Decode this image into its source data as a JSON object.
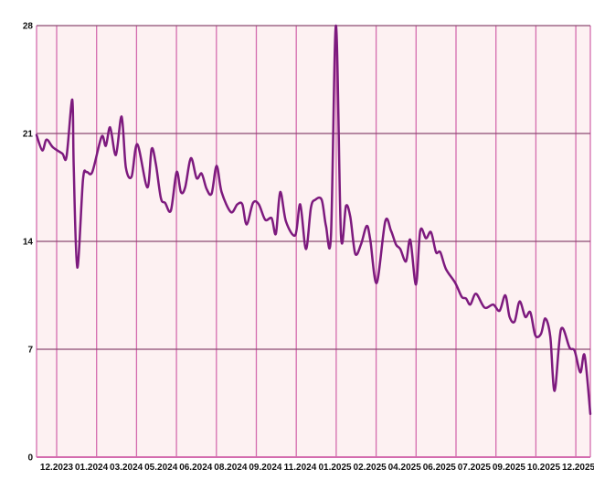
{
  "chart_data": {
    "type": "line",
    "title": "",
    "xlabel": "",
    "ylabel": "",
    "ylim": [
      0,
      28
    ],
    "yticks": [
      "0",
      "7",
      "14",
      "21",
      "28"
    ],
    "xlim": [
      "2023-11-03",
      "2025-12-17"
    ],
    "xtick_labels": [
      "12.2023",
      "01.2024",
      "03.2024",
      "05.2024",
      "06.2024",
      "08.2024",
      "09.2024",
      "11.2024",
      "01.2025",
      "02.2025",
      "04.2025",
      "06.2025",
      "07.2025",
      "09.2025",
      "10.2025",
      "12.2025"
    ],
    "grid": true,
    "colors": {
      "line": "#7d1a7e",
      "plot_bg": "#fdf1f2",
      "vgrid": "#d46cae",
      "hgrid": "#8c4a72",
      "axis": "#d46cae"
    },
    "series": [
      {
        "x": [
          "2023-11-03",
          "2023-11-11",
          "2023-11-17",
          "2023-11-26",
          "2023-12-09",
          "2023-12-15",
          "2023-12-23",
          "2023-12-25",
          "2023-12-30",
          "2024-01-07",
          "2024-01-12",
          "2024-01-20",
          "2024-02-02",
          "2024-02-08",
          "2024-02-14",
          "2024-02-22",
          "2024-03-01",
          "2024-03-07",
          "2024-03-15",
          "2024-03-23",
          "2024-04-06",
          "2024-04-12",
          "2024-04-18",
          "2024-04-25",
          "2024-05-01",
          "2024-05-09",
          "2024-05-17",
          "2024-05-23",
          "2024-05-29",
          "2024-06-06",
          "2024-06-14",
          "2024-06-21",
          "2024-06-28",
          "2024-07-05",
          "2024-07-12",
          "2024-07-19",
          "2024-08-01",
          "2024-08-10",
          "2024-08-17",
          "2024-08-23",
          "2024-09-01",
          "2024-09-09",
          "2024-09-18",
          "2024-09-27",
          "2024-10-03",
          "2024-10-09",
          "2024-10-17",
          "2024-10-30",
          "2024-11-06",
          "2024-11-14",
          "2024-11-21",
          "2024-11-27",
          "2024-12-06",
          "2024-12-12",
          "2024-12-19",
          "2024-12-26",
          "2025-01-02",
          "2025-01-09",
          "2025-01-15",
          "2025-01-22",
          "2025-01-30",
          "2025-02-07",
          "2025-02-12",
          "2025-02-21",
          "2025-03-05",
          "2025-03-13",
          "2025-03-20",
          "2025-03-26",
          "2025-04-03",
          "2025-04-09",
          "2025-04-17",
          "2025-04-23",
          "2025-05-01",
          "2025-05-08",
          "2025-05-15",
          "2025-05-21",
          "2025-05-29",
          "2025-06-11",
          "2025-06-20",
          "2025-06-26",
          "2025-07-02",
          "2025-07-10",
          "2025-07-22",
          "2025-08-03",
          "2025-08-12",
          "2025-08-20",
          "2025-08-26",
          "2025-09-02",
          "2025-09-09",
          "2025-09-17",
          "2025-09-24",
          "2025-10-01",
          "2025-10-09",
          "2025-10-15",
          "2025-10-22",
          "2025-10-28",
          "2025-11-06",
          "2025-11-18",
          "2025-11-25",
          "2025-12-03",
          "2025-12-09",
          "2025-12-17"
        ],
        "y": [
          20.9,
          19.9,
          20.6,
          20.1,
          19.7,
          19.5,
          23.2,
          18.8,
          12.3,
          18.0,
          18.5,
          18.5,
          20.8,
          20.2,
          21.4,
          19.6,
          22.1,
          18.8,
          18.2,
          20.3,
          17.5,
          20.0,
          19.0,
          16.8,
          16.5,
          16.0,
          18.5,
          17.2,
          17.5,
          19.4,
          18.1,
          18.4,
          17.4,
          17.1,
          18.9,
          17.2,
          15.9,
          16.4,
          16.4,
          15.1,
          16.5,
          16.4,
          15.4,
          15.5,
          14.5,
          17.2,
          15.3,
          14.4,
          16.4,
          13.5,
          16.2,
          16.7,
          16.7,
          15.0,
          14.4,
          28.0,
          14.4,
          16.3,
          15.6,
          13.2,
          13.8,
          15.0,
          14.1,
          11.3,
          15.3,
          14.7,
          13.8,
          13.5,
          12.7,
          14.1,
          11.2,
          14.7,
          14.2,
          14.6,
          13.3,
          13.3,
          12.2,
          11.3,
          10.4,
          10.3,
          9.9,
          10.6,
          9.7,
          9.9,
          9.5,
          10.5,
          9.1,
          8.8,
          10.1,
          9.1,
          9.4,
          7.9,
          8.0,
          9.0,
          7.8,
          4.3,
          8.3,
          7.1,
          6.9,
          5.5,
          6.6,
          2.8
        ]
      }
    ]
  }
}
